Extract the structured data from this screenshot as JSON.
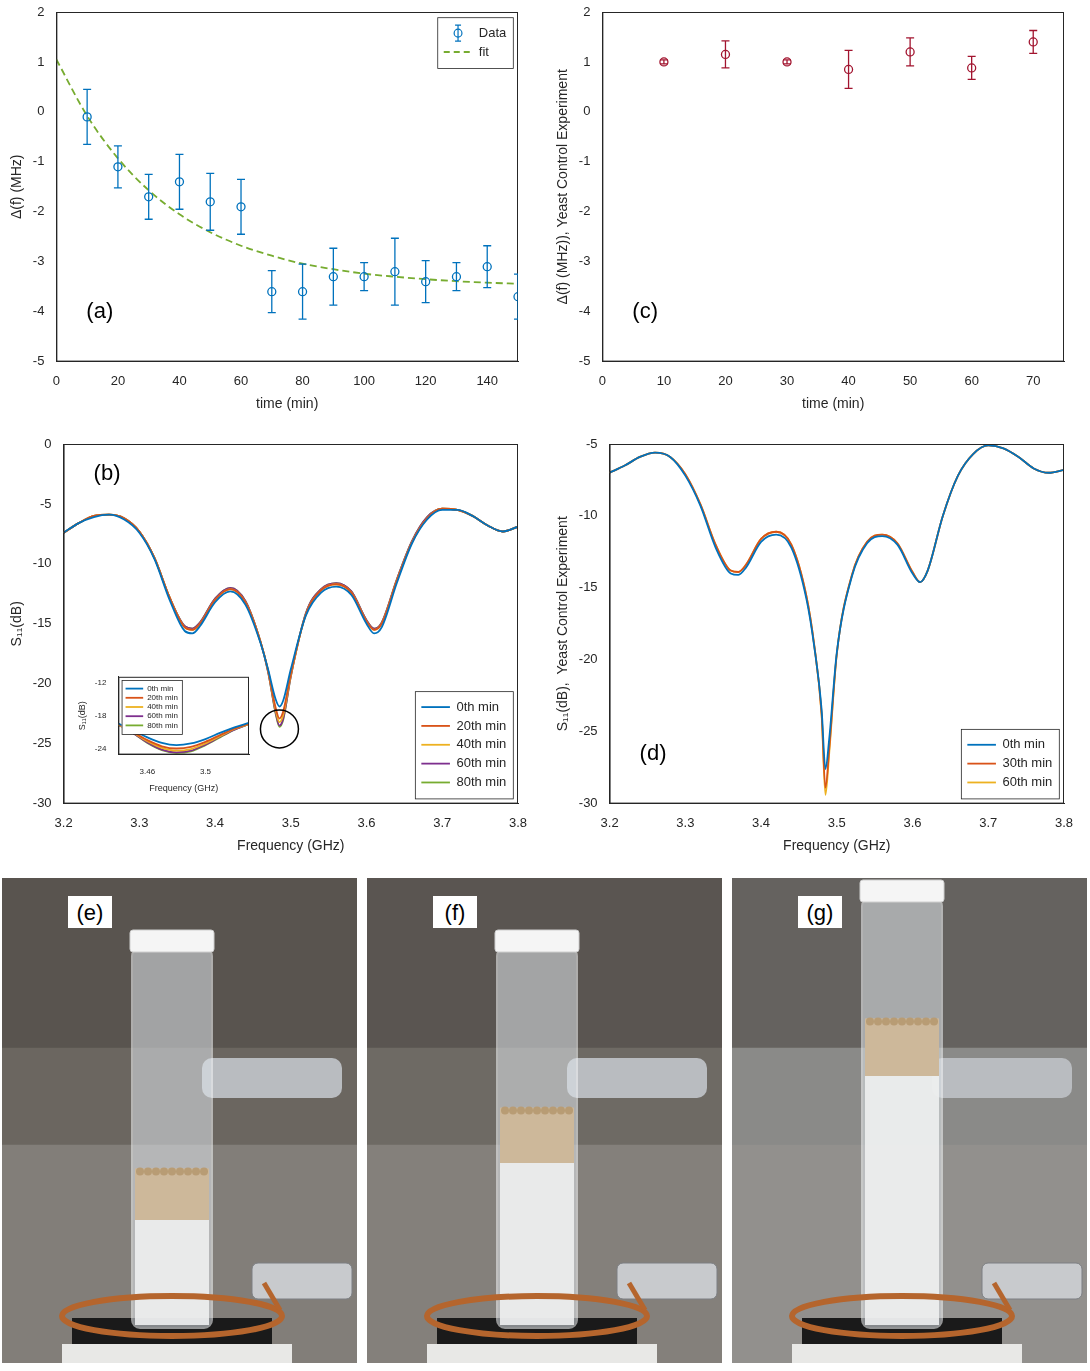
{
  "chart_data": [
    {
      "type": "scatter",
      "panel_label": "(a)",
      "x_label": "time (min)",
      "y_label": "Δ(f) (MHz)",
      "xlim": [
        0,
        150
      ],
      "xticks": [
        0,
        20,
        40,
        60,
        80,
        100,
        120,
        140
      ],
      "ylim": [
        -5,
        2
      ],
      "yticks": [
        -5,
        -4,
        -3,
        -2,
        -1,
        0,
        1,
        2
      ],
      "grid": false,
      "legend": "northeast",
      "series": [
        {
          "name": "Data",
          "type": "scatter",
          "marker": "circle",
          "color": "#0072bd",
          "x": [
            10,
            20,
            30,
            40,
            50,
            60,
            70,
            80,
            90,
            100,
            110,
            120,
            130,
            140,
            150
          ],
          "values": [
            -0.1,
            -1.1,
            -1.7,
            -1.4,
            -1.8,
            -1.9,
            -3.6,
            -3.6,
            -3.3,
            -3.3,
            -3.2,
            -3.4,
            -3.3,
            -3.1,
            -3.7
          ],
          "error": [
            0.55,
            0.42,
            0.45,
            0.55,
            0.57,
            0.55,
            0.42,
            0.55,
            0.57,
            0.28,
            0.67,
            0.42,
            0.28,
            0.42,
            0.45
          ]
        },
        {
          "name": "fit",
          "type": "line",
          "line_style": "dashed",
          "color": "#77ac30",
          "x": [
            0,
            10,
            20,
            30,
            40,
            50,
            60,
            70,
            80,
            90,
            100,
            110,
            120,
            130,
            140,
            150
          ],
          "values": [
            1.05,
            -0.08,
            -0.93,
            -1.57,
            -2.05,
            -2.41,
            -2.68,
            -2.88,
            -3.04,
            -3.15,
            -3.24,
            -3.3,
            -3.35,
            -3.39,
            -3.42,
            -3.44
          ]
        }
      ]
    },
    {
      "type": "line",
      "panel_label": "(b)",
      "x_label": "Frequency (GHz)",
      "y_label": "S₁₁(dB)",
      "xlim": [
        3.2,
        3.8
      ],
      "xticks": [
        3.2,
        3.3,
        3.4,
        3.5,
        3.6,
        3.7,
        3.8
      ],
      "ylim": [
        -30,
        0
      ],
      "yticks": [
        -30,
        -25,
        -20,
        -15,
        -10,
        -5,
        0
      ],
      "grid": false,
      "legend": "southeast",
      "x": [
        3.2,
        3.22,
        3.24,
        3.26,
        3.28,
        3.3,
        3.32,
        3.34,
        3.36,
        3.37,
        3.38,
        3.4,
        3.42,
        3.44,
        3.46,
        3.47,
        3.48,
        3.485,
        3.49,
        3.5,
        3.52,
        3.54,
        3.56,
        3.58,
        3.6,
        3.61,
        3.62,
        3.64,
        3.66,
        3.68,
        3.7,
        3.72,
        3.74,
        3.76,
        3.78,
        3.8
      ],
      "series": [
        {
          "name": "0th min",
          "color": "#0072bd",
          "values": [
            -7.4,
            -6.6,
            -6.1,
            -5.9,
            -6.3,
            -7.4,
            -9.6,
            -13.0,
            -15.6,
            -15.8,
            -15.2,
            -13.2,
            -12.3,
            -13.4,
            -16.6,
            -18.8,
            -21.3,
            -21.9,
            -21.4,
            -18.8,
            -14.3,
            -12.4,
            -11.9,
            -12.6,
            -15.0,
            -15.8,
            -15.3,
            -11.6,
            -8.3,
            -6.3,
            -5.5,
            -5.5,
            -6.0,
            -6.8,
            -7.3,
            -6.9
          ]
        },
        {
          "name": "20th min",
          "color": "#d95319",
          "values": [
            -7.4,
            -6.6,
            -6.0,
            -5.9,
            -6.2,
            -7.3,
            -9.5,
            -12.8,
            -15.3,
            -15.5,
            -15.0,
            -13.0,
            -12.1,
            -13.2,
            -16.5,
            -18.9,
            -22.0,
            -22.9,
            -22.3,
            -19.2,
            -14.2,
            -12.2,
            -11.7,
            -12.4,
            -14.8,
            -15.5,
            -15.0,
            -11.4,
            -8.2,
            -6.2,
            -5.4,
            -5.5,
            -6.0,
            -6.8,
            -7.3,
            -6.9
          ]
        },
        {
          "name": "40th min",
          "color": "#edb120",
          "values": [
            -7.4,
            -6.6,
            -6.0,
            -5.9,
            -6.2,
            -7.3,
            -9.5,
            -12.8,
            -15.3,
            -15.5,
            -15.0,
            -13.0,
            -12.1,
            -13.2,
            -16.5,
            -18.9,
            -22.2,
            -23.2,
            -22.6,
            -19.3,
            -14.2,
            -12.2,
            -11.7,
            -12.4,
            -14.8,
            -15.5,
            -15.0,
            -11.4,
            -8.2,
            -6.2,
            -5.4,
            -5.5,
            -6.0,
            -6.8,
            -7.3,
            -6.9
          ]
        },
        {
          "name": "60th min",
          "color": "#7e2f8e",
          "values": [
            -7.4,
            -6.6,
            -6.0,
            -5.9,
            -6.2,
            -7.3,
            -9.5,
            -12.8,
            -15.2,
            -15.4,
            -14.9,
            -12.9,
            -12.0,
            -13.1,
            -16.5,
            -19.0,
            -22.4,
            -23.5,
            -22.9,
            -19.4,
            -14.1,
            -12.1,
            -11.6,
            -12.3,
            -14.7,
            -15.4,
            -14.9,
            -11.3,
            -8.1,
            -6.1,
            -5.4,
            -5.5,
            -6.0,
            -6.8,
            -7.3,
            -6.9
          ]
        },
        {
          "name": "80th min",
          "color": "#77ac30",
          "values": [
            -7.4,
            -6.6,
            -6.0,
            -5.9,
            -6.2,
            -7.3,
            -9.5,
            -12.8,
            -15.2,
            -15.4,
            -14.9,
            -12.9,
            -12.0,
            -13.1,
            -16.5,
            -19.0,
            -22.5,
            -23.6,
            -23.0,
            -19.4,
            -14.1,
            -12.1,
            -11.6,
            -12.3,
            -14.7,
            -15.4,
            -14.9,
            -11.3,
            -8.1,
            -6.1,
            -5.4,
            -5.5,
            -6.0,
            -6.8,
            -7.3,
            -6.9
          ]
        }
      ],
      "inset": {
        "type": "line",
        "x_label": "Frequency (GHz)",
        "y_label": "S₁₁(dB)",
        "xlim": [
          3.44,
          3.53
        ],
        "xticks": [
          3.46,
          3.5
        ],
        "ylim": [
          -25,
          -11
        ],
        "yticks": [
          -24,
          -18,
          -12
        ],
        "grid": false,
        "legend": "northwest",
        "x": [
          3.44,
          3.45,
          3.46,
          3.47,
          3.48,
          3.49,
          3.5,
          3.51,
          3.52,
          3.53
        ],
        "series": [
          {
            "name": "0th min",
            "color": "#0072bd",
            "values": [
              -19.4,
              -20.6,
              -21.9,
              -22.9,
              -23.3,
              -23.0,
              -22.2,
              -21.1,
              -20.1,
              -19.3
            ]
          },
          {
            "name": "20th min",
            "color": "#d95319",
            "values": [
              -19.5,
              -20.9,
              -22.4,
              -23.5,
              -23.9,
              -23.6,
              -22.7,
              -21.5,
              -20.3,
              -19.4
            ]
          },
          {
            "name": "40th min",
            "color": "#edb120",
            "values": [
              -19.6,
              -21.0,
              -22.6,
              -23.8,
              -24.3,
              -24.0,
              -23.0,
              -21.7,
              -20.4,
              -19.5
            ]
          },
          {
            "name": "60th min",
            "color": "#7e2f8e",
            "values": [
              -19.6,
              -21.1,
              -22.8,
              -24.1,
              -24.6,
              -24.3,
              -23.2,
              -21.8,
              -20.5,
              -19.5
            ]
          },
          {
            "name": "80th min",
            "color": "#77ac30",
            "values": [
              -19.6,
              -21.1,
              -22.9,
              -24.2,
              -24.7,
              -24.4,
              -23.3,
              -21.9,
              -20.5,
              -19.5
            ]
          }
        ]
      }
    },
    {
      "type": "scatter",
      "panel_label": "(c)",
      "x_label": "time (min)",
      "y_label": "Δ(f) (MHz)), Yeast Control Experiment",
      "xlim": [
        0,
        75
      ],
      "xticks": [
        0,
        10,
        20,
        30,
        40,
        50,
        60,
        70
      ],
      "ylim": [
        -5,
        2
      ],
      "yticks": [
        -5,
        -4,
        -3,
        -2,
        -1,
        0,
        1,
        2
      ],
      "grid": false,
      "series": [
        {
          "type": "scatter",
          "marker": "circle",
          "color": "#a2142f",
          "x": [
            10,
            20,
            30,
            40,
            50,
            60,
            70
          ],
          "values": [
            1.0,
            1.15,
            1.0,
            0.85,
            1.2,
            0.88,
            1.4
          ],
          "error": [
            0.04,
            0.27,
            0.04,
            0.38,
            0.28,
            0.23,
            0.23
          ]
        }
      ]
    },
    {
      "type": "line",
      "panel_label": "(d)",
      "x_label": "Frequency (GHz)",
      "y_label": "S₁₁(dB),  Yeast Control Experiment",
      "xlim": [
        3.2,
        3.8
      ],
      "xticks": [
        3.2,
        3.3,
        3.4,
        3.5,
        3.6,
        3.7,
        3.8
      ],
      "ylim": [
        -30,
        -5
      ],
      "yticks": [
        -30,
        -25,
        -20,
        -15,
        -10,
        -5
      ],
      "grid": false,
      "legend": "southeast",
      "x": [
        3.2,
        3.22,
        3.24,
        3.26,
        3.28,
        3.3,
        3.32,
        3.34,
        3.36,
        3.37,
        3.38,
        3.4,
        3.42,
        3.44,
        3.46,
        3.47,
        3.48,
        3.485,
        3.49,
        3.5,
        3.52,
        3.54,
        3.56,
        3.58,
        3.6,
        3.61,
        3.62,
        3.64,
        3.66,
        3.68,
        3.7,
        3.72,
        3.74,
        3.76,
        3.78,
        3.8
      ],
      "series": [
        {
          "name": "0th min",
          "color": "#0072bd",
          "values": [
            -7.0,
            -6.5,
            -5.9,
            -5.6,
            -5.9,
            -7.2,
            -9.3,
            -12.2,
            -14.0,
            -14.1,
            -13.6,
            -11.8,
            -11.3,
            -12.2,
            -15.8,
            -19.0,
            -23.5,
            -27.6,
            -25.5,
            -19.5,
            -14.2,
            -11.9,
            -11.4,
            -12.0,
            -14.0,
            -14.6,
            -13.8,
            -10.0,
            -7.2,
            -5.7,
            -5.1,
            -5.3,
            -5.9,
            -6.7,
            -7.0,
            -6.8
          ]
        },
        {
          "name": "30th min",
          "color": "#d95319",
          "values": [
            -7.0,
            -6.5,
            -5.9,
            -5.6,
            -5.9,
            -7.1,
            -9.2,
            -12.0,
            -13.8,
            -13.9,
            -13.4,
            -11.6,
            -11.1,
            -12.0,
            -15.6,
            -18.9,
            -23.8,
            -28.9,
            -26.2,
            -19.6,
            -14.1,
            -11.8,
            -11.3,
            -11.9,
            -13.9,
            -14.6,
            -13.8,
            -10.0,
            -7.2,
            -5.7,
            -5.1,
            -5.3,
            -5.9,
            -6.7,
            -7.0,
            -6.8
          ]
        },
        {
          "name": "60th min",
          "color": "#edb120",
          "values": [
            -7.0,
            -6.5,
            -5.9,
            -5.6,
            -5.9,
            -7.1,
            -9.2,
            -12.0,
            -13.8,
            -13.9,
            -13.4,
            -11.6,
            -11.1,
            -12.0,
            -15.6,
            -18.9,
            -23.9,
            -29.4,
            -26.5,
            -19.6,
            -14.1,
            -11.8,
            -11.3,
            -11.9,
            -13.9,
            -14.6,
            -13.8,
            -10.0,
            -7.2,
            -5.7,
            -5.1,
            -5.3,
            -5.9,
            -6.7,
            -7.0,
            -6.8
          ]
        }
      ]
    }
  ],
  "photos": [
    {
      "panel_label": "(e)"
    },
    {
      "panel_label": "(f)"
    },
    {
      "panel_label": "(g)"
    }
  ]
}
